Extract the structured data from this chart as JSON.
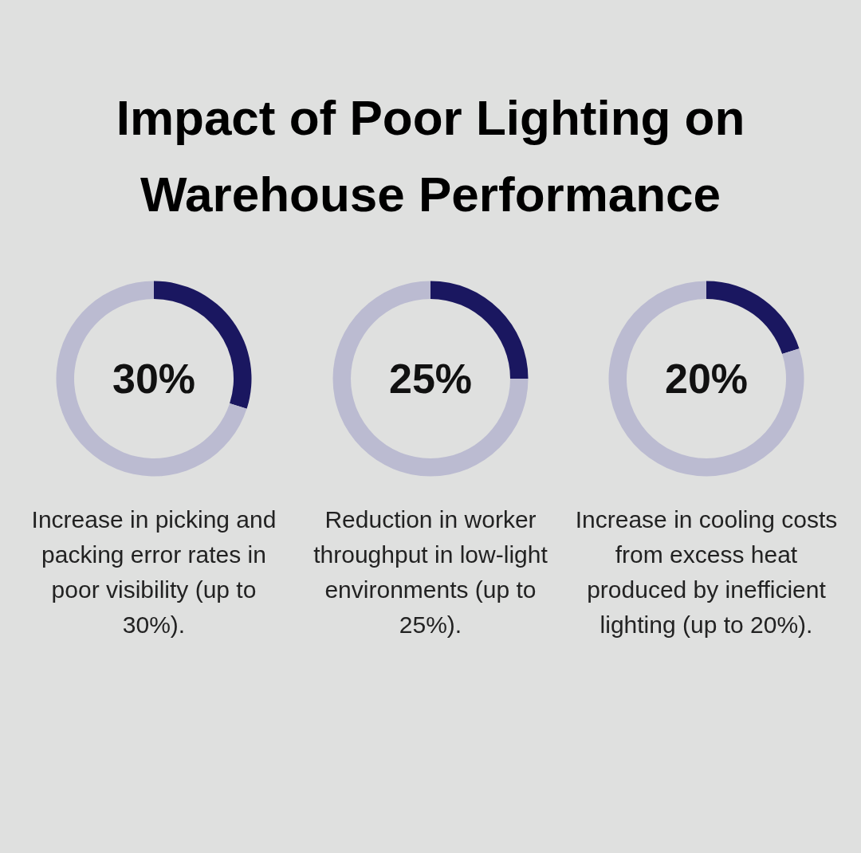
{
  "chart_data": [
    {
      "type": "donut",
      "title": "Impact of Poor Lighting on Warehouse Performance",
      "categories": [
        null,
        null
      ],
      "values": [
        30,
        70
      ],
      "colors": [
        "#1a1760",
        "#bbbbd1"
      ],
      "value_labels": [
        "30%",
        null
      ],
      "annotations": [
        "Increase in picking and packing error rates in poor visibility (up to 30%)."
      ]
    },
    {
      "type": "donut",
      "categories": [
        null,
        null
      ],
      "values": [
        25,
        75
      ],
      "colors": [
        "#1a1760",
        "#bbbbd1"
      ],
      "value_labels": [
        "25%",
        null
      ],
      "annotations": [
        "Reduction in worker throughput in low-light environments (up to 25%)."
      ]
    },
    {
      "type": "donut",
      "categories": [
        null,
        null
      ],
      "values": [
        20,
        80
      ],
      "colors": [
        "#1a1760",
        "#bbbbd1"
      ],
      "value_labels": [
        "20%",
        null
      ],
      "annotations": [
        "Increase in cooling costs from excess heat produced by inefficient lighting (up to 20%)."
      ]
    }
  ]
}
